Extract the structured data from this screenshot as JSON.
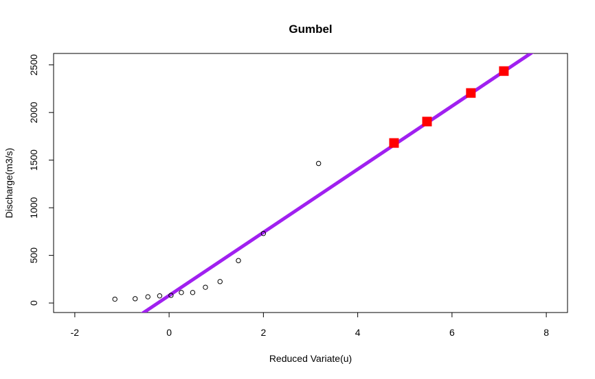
{
  "chart_data": {
    "type": "scatter",
    "title": "Gumbel",
    "xlabel": "Reduced Variate(u)",
    "ylabel": "Discharge(m3/s)",
    "xlim": [
      -2.45,
      8.45
    ],
    "ylim": [
      -100,
      2620
    ],
    "xticks": [
      -2,
      0,
      2,
      4,
      6,
      8
    ],
    "yticks": [
      0,
      500,
      1000,
      1500,
      2000,
      2500
    ],
    "grid": false,
    "colors": {
      "line": "#a020f0",
      "predicted": "#ff0000",
      "observed": "#000000"
    },
    "observed": {
      "x": [
        -1.15,
        -0.72,
        -0.45,
        -0.2,
        0.04,
        0.26,
        0.5,
        0.77,
        1.08,
        1.47,
        2.0,
        3.17
      ],
      "y": [
        40,
        45,
        65,
        75,
        80,
        110,
        110,
        165,
        225,
        445,
        730,
        1465
      ]
    },
    "fit_line": {
      "x": [
        -0.75,
        8.0
      ],
      "y": [
        -170,
        2730
      ]
    },
    "predicted": {
      "x": [
        4.77,
        5.47,
        6.4,
        7.1
      ],
      "y": [
        1680,
        1905,
        2205,
        2435
      ]
    }
  }
}
